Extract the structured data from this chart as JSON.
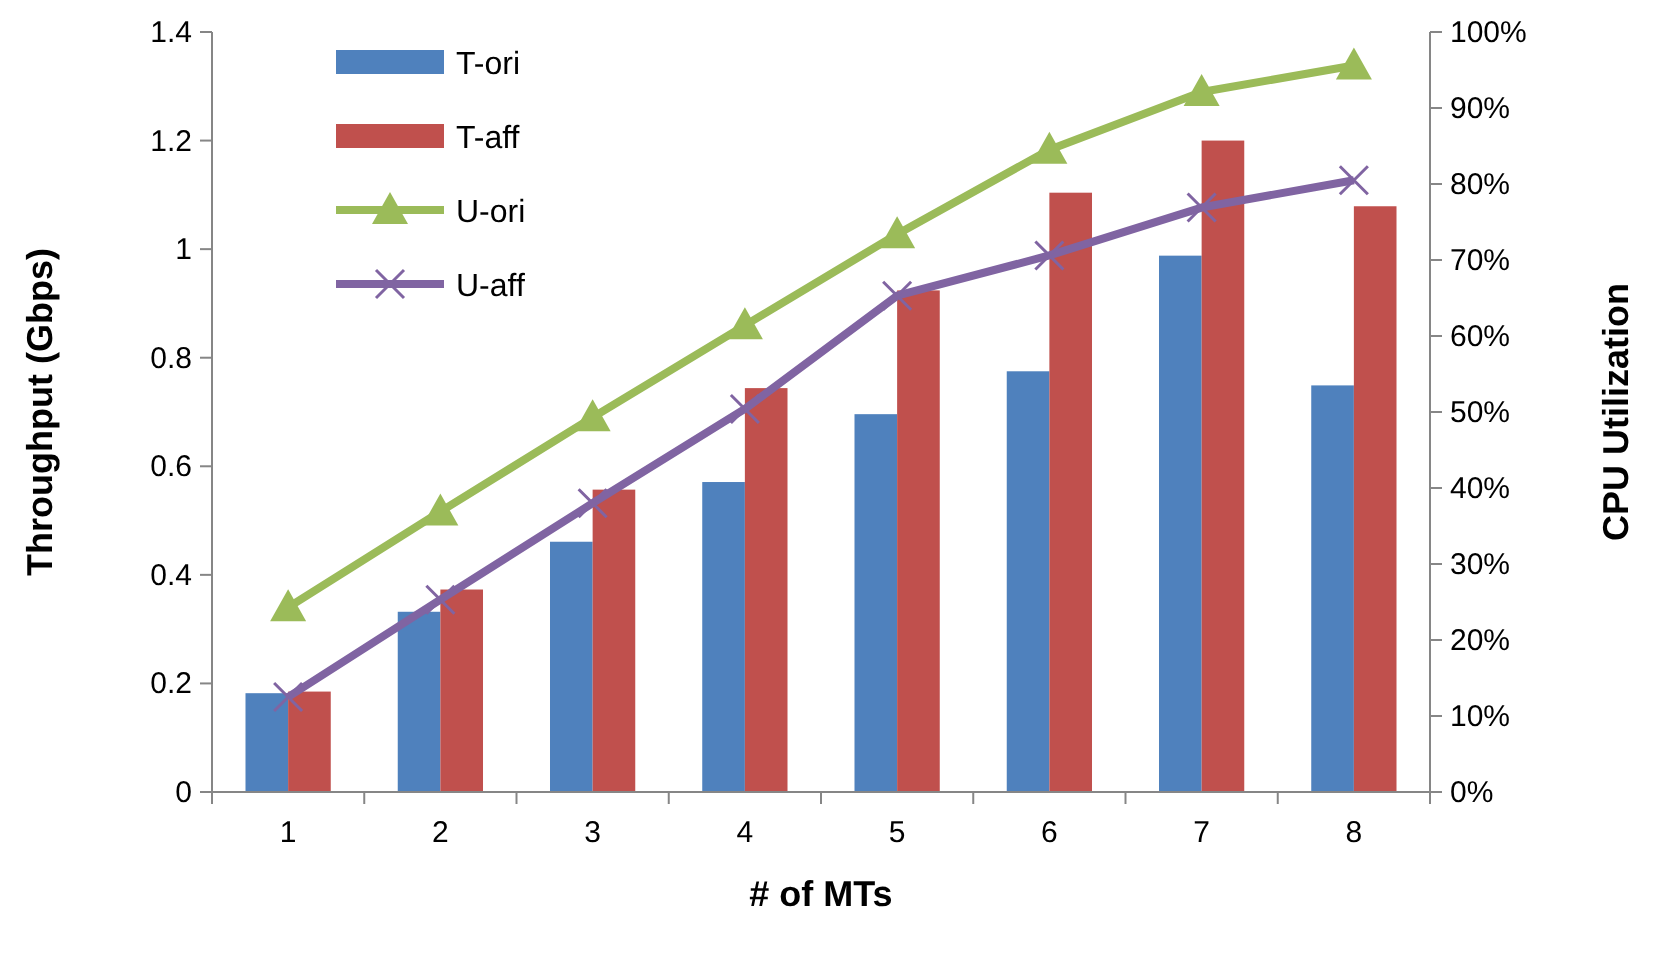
{
  "chart_data": {
    "type": "bar",
    "categories": [
      "1",
      "2",
      "3",
      "4",
      "5",
      "6",
      "7",
      "8"
    ],
    "xlabel": "# of MTs",
    "ylabel": "Throughput (Gbps)",
    "y2label": "CPU Utilization",
    "ylim": [
      0,
      1.4
    ],
    "yticks": [
      0,
      0.2,
      0.4,
      0.6,
      0.8,
      1,
      1.2,
      1.4
    ],
    "y2lim": [
      0,
      100
    ],
    "y2ticks": [
      {
        "value": 0,
        "label": "0%"
      },
      {
        "value": 10,
        "label": "10%"
      },
      {
        "value": 20,
        "label": "20%"
      },
      {
        "value": 30,
        "label": "30%"
      },
      {
        "value": 40,
        "label": "40%"
      },
      {
        "value": 50,
        "label": "50%"
      },
      {
        "value": 60,
        "label": "60%"
      },
      {
        "value": 70,
        "label": "70%"
      },
      {
        "value": 80,
        "label": "80%"
      },
      {
        "value": 90,
        "label": "90%"
      },
      {
        "value": 100,
        "label": "100%"
      }
    ],
    "grid": false,
    "legend": "top left",
    "series": [
      {
        "name": "T-ori",
        "color": "#4f81bd",
        "values": [
          0.182,
          0.332,
          0.461,
          0.571,
          0.696,
          0.775,
          0.988,
          0.749
        ]
      },
      {
        "name": "T-aff",
        "color": "#c0504d",
        "values": [
          0.185,
          0.373,
          0.557,
          0.744,
          0.924,
          1.104,
          1.2,
          1.079
        ]
      },
      {
        "name": "U-ori",
        "type": "line",
        "axis": "y2",
        "marker": "triangle",
        "color": "#9bbb59",
        "values": [
          24.3,
          36.9,
          49.3,
          61.4,
          73.4,
          84.5,
          92.1,
          95.6
        ]
      },
      {
        "name": "U-aff",
        "type": "line",
        "axis": "y2",
        "marker": "cross",
        "color": "#8064a2",
        "values": [
          12.5,
          25.3,
          38,
          50.4,
          65.3,
          70.6,
          76.9,
          80.5
        ]
      }
    ]
  }
}
